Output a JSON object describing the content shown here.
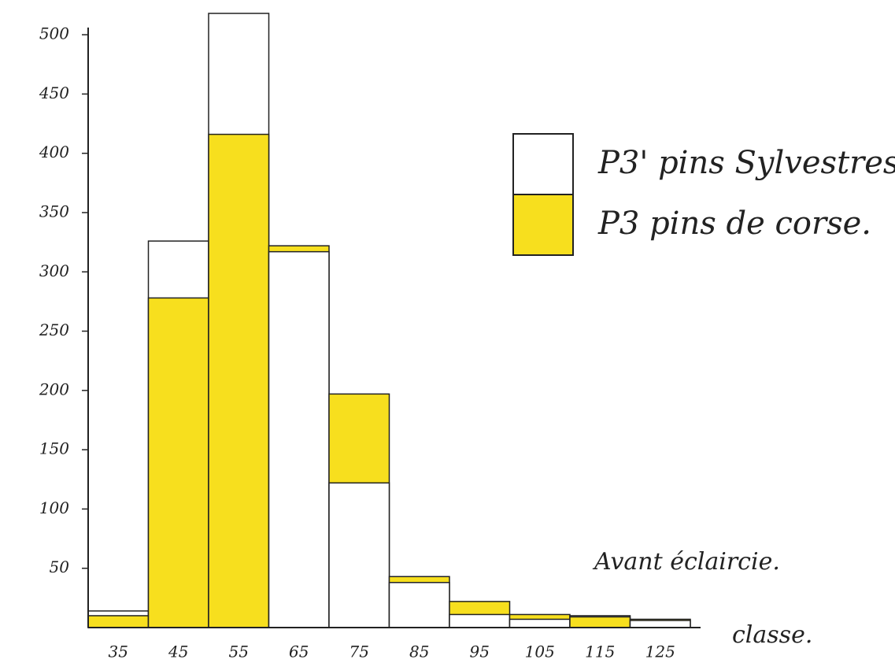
{
  "chart_data": {
    "type": "bar",
    "categories": [
      "35",
      "45",
      "55",
      "65",
      "75",
      "85",
      "95",
      "105",
      "115",
      "125"
    ],
    "series": [
      {
        "name": "P3' pins Sylvestres",
        "color": "#ffffff",
        "values": [
          14,
          326,
          518,
          317,
          122,
          38,
          11,
          7,
          10,
          6
        ]
      },
      {
        "name": "P3 pins de corse.",
        "color": "#f7df1e",
        "values": [
          10,
          278,
          416,
          322,
          197,
          43,
          22,
          11,
          9,
          7
        ]
      }
    ],
    "x_label": "classe.",
    "annotation": "Avant éclaircie.",
    "ylim": [
      0,
      520
    ],
    "yticks": [
      50,
      100,
      150,
      200,
      250,
      300,
      350,
      400,
      450,
      500
    ]
  }
}
